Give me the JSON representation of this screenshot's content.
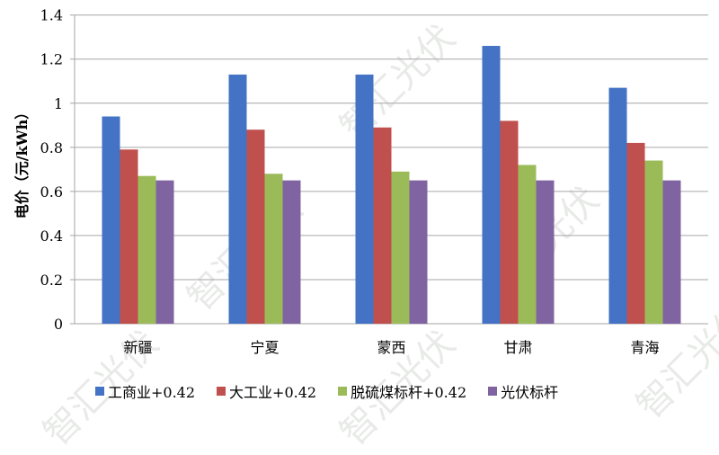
{
  "chart_data": {
    "type": "bar",
    "title": "",
    "xlabel": "",
    "ylabel": "电价（元/kWh）",
    "ylim": [
      0,
      1.4
    ],
    "yticks": [
      "0",
      "0.2",
      "0.4",
      "0.6",
      "0.8",
      "1",
      "1.2",
      "1.4"
    ],
    "grid": true,
    "legend_position": "bottom",
    "categories": [
      "新疆",
      "宁夏",
      "蒙西",
      "甘肃",
      "青海"
    ],
    "series": [
      {
        "name": "工商业+0.42",
        "color": "#4472C4",
        "values": [
          0.94,
          1.13,
          1.13,
          1.26,
          1.07
        ]
      },
      {
        "name": "大工业+0.42",
        "color": "#C0504D",
        "values": [
          0.79,
          0.88,
          0.89,
          0.92,
          0.82
        ]
      },
      {
        "name": "脱硫煤标杆+0.42",
        "color": "#9BBB59",
        "values": [
          0.67,
          0.68,
          0.69,
          0.72,
          0.74
        ]
      },
      {
        "name": "光伏标杆",
        "color": "#8064A2",
        "values": [
          0.65,
          0.65,
          0.65,
          0.65,
          0.65
        ]
      }
    ]
  },
  "watermark": "智汇光伏"
}
